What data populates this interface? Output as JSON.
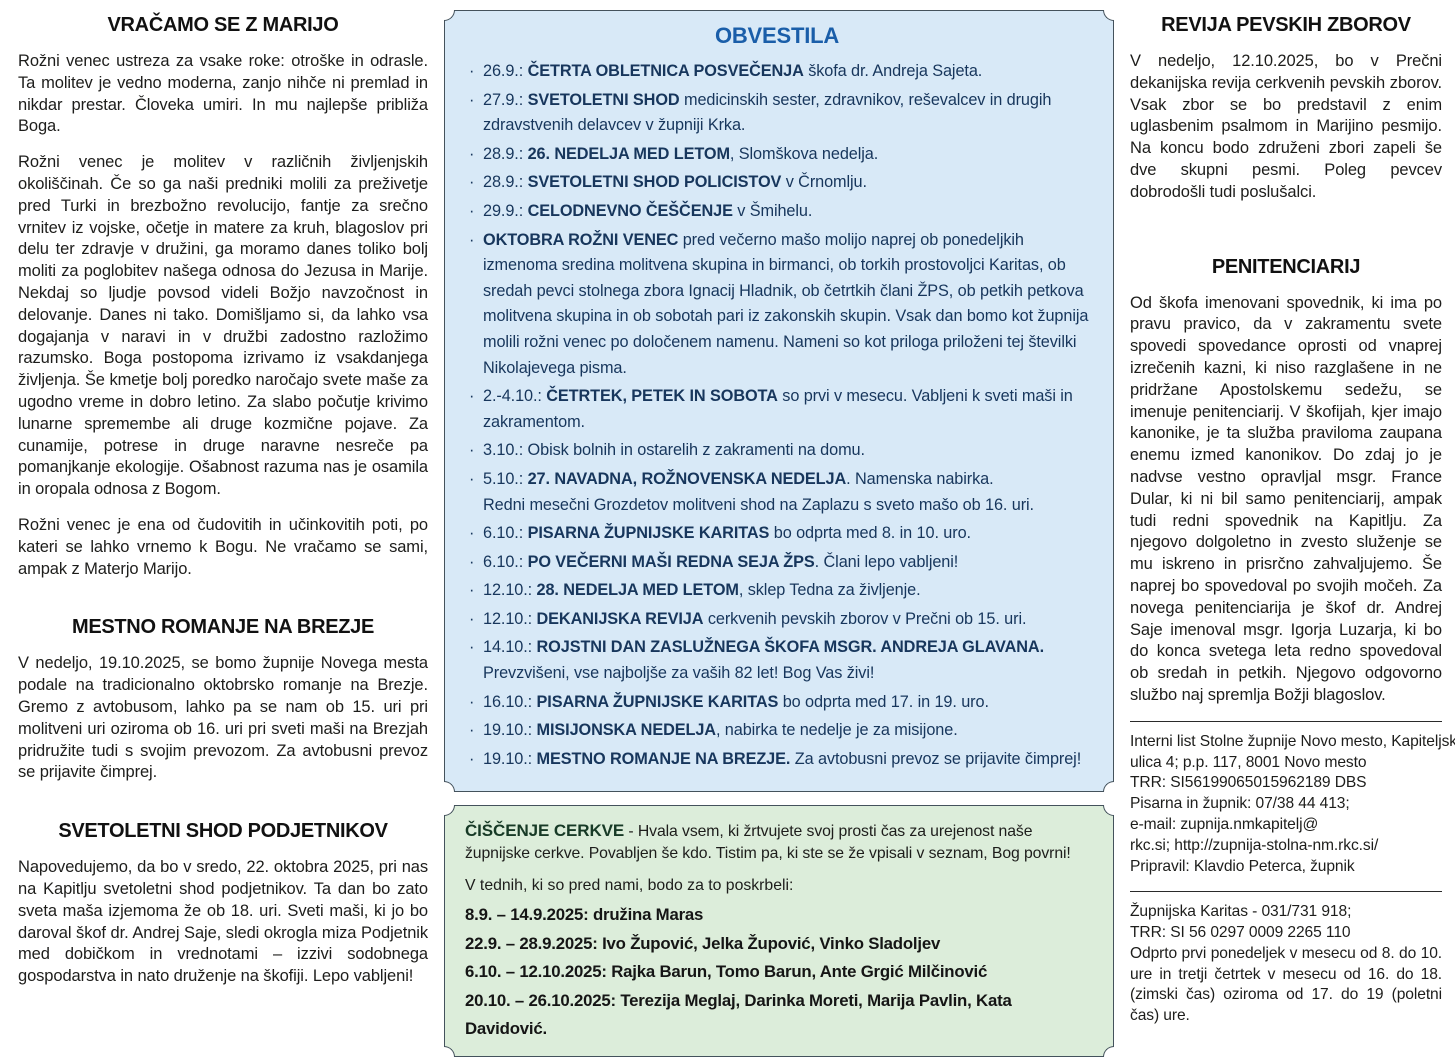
{
  "colors": {
    "accent_blue": "#1a5ea9",
    "box_blue_bg": "#d8e9f7",
    "box_blue_text": "#17365c",
    "box_green_bg": "#dcedda",
    "box_border": "#44525c",
    "text": "#1d1d1b"
  },
  "left_column": {
    "sections": [
      {
        "title": "VRAČAMO SE Z MARIJO",
        "paragraphs": [
          "Rožni venec ustreza za vsake roke: otroške in odrasle. Ta molitev je vedno moderna, zanjo nihče ni premlad in nikdar prestar. Človeka umiri. In mu najlepše približa Boga.",
          "Rožni venec je molitev v različnih življenjskih okoliščinah. Če so ga naši predniki molili za preživetje pred Turki in brezbožno revolucijo, fantje za srečno vrnitev iz vojske, očetje in matere za kruh, blagoslov pri delu ter zdravje v družini, ga moramo danes toliko bolj moliti za poglobitev našega odnosa do Jezusa in Marije. Nekdaj so ljudje povsod videli Božjo navzočnost in delovanje. Danes ni tako. Domišljamo si, da lahko vsa dogajanja v naravi in v družbi zadostno razložimo razumsko. Boga postopoma izrivamo iz vsakdanjega življenja. Še kmetje bolj poredko naročajo svete maše za ugodno vreme in dobro letino. Za slabo počutje krivimo lunarne spremembe ali druge kozmične pojave. Za cunamije, potrese in druge naravne nesreče pa pomanjkanje ekologije. Ošabnost razuma nas je osamila in oropala odnosa z Bogom.",
          "Rožni venec je ena od čudovitih in učinkovitih poti, po kateri se lahko vrnemo k Bogu. Ne vračamo se sami, ampak z Materjo Marijo."
        ]
      },
      {
        "title": "MESTNO ROMANJE NA BREZJE",
        "paragraphs": [
          "V nedeljo, 19.10.2025, se bomo župnije Novega mesta podale na tradicionalno oktobrsko romanje na Brezje. Gremo z avtobusom, lahko pa se nam ob 15. uri pri molitveni uri oziroma ob 16. uri pri sveti maši na Brezjah pridružite tudi s svojim prevozom. Za avtobusni prevoz se prijavite čimprej."
        ]
      },
      {
        "title": "SVETOLETNI SHOD PODJETNIKOV",
        "paragraphs": [
          "Napovedujemo, da bo v sredo, 22. oktobra 2025, pri nas na Kapitlju svetoletni shod podjetnikov. Ta dan bo zato sveta maša izjemoma že ob 18. uri. Sveti maši, ki jo bo daroval škof dr. Andrej Saje, sledi okrogla miza Podjetnik med dobičkom in vrednotami – izzivi sodobnega gospodarstva in nato druženje na škofiji. Lepo vabljeni!"
        ]
      }
    ]
  },
  "obvestila": {
    "title": "OBVESTILA",
    "bullet": "·",
    "items": [
      {
        "segments": [
          {
            "text": "26.9.: ",
            "bold": false
          },
          {
            "text": "ČETRTA OBLETNICA POSVEČENJA",
            "bold": true
          },
          {
            "text": " škofa dr. Andreja Sajeta.",
            "bold": false
          }
        ]
      },
      {
        "segments": [
          {
            "text": "27.9.: ",
            "bold": false
          },
          {
            "text": "SVETOLETNI SHOD",
            "bold": true
          },
          {
            "text": " medicinskih sester, zdravnikov, reševalcev in drugih zdravstvenih delavcev v župniji Krka.",
            "bold": false
          }
        ]
      },
      {
        "segments": [
          {
            "text": "28.9.: ",
            "bold": false
          },
          {
            "text": "26. NEDELJA MED LETOM",
            "bold": true
          },
          {
            "text": ", Slomškova nedelja.",
            "bold": false
          }
        ]
      },
      {
        "segments": [
          {
            "text": "28.9.: ",
            "bold": false
          },
          {
            "text": "SVETOLETNI SHOD POLICISTOV",
            "bold": true
          },
          {
            "text": " v Črnomlju.",
            "bold": false
          }
        ]
      },
      {
        "segments": [
          {
            "text": "29.9.: ",
            "bold": false
          },
          {
            "text": "CELODNEVNO ČEŠČENJE",
            "bold": true
          },
          {
            "text": " v Šmihelu.",
            "bold": false
          }
        ]
      },
      {
        "segments": [
          {
            "text": "OKTOBRA ROŽNI VENEC",
            "bold": true
          },
          {
            "text": " pred večerno mašo molijo naprej ob ponedeljkih izmenoma sredina molitvena skupina in birmanci, ob torkih prostovoljci Karitas, ob sredah pevci stolnega zbora Ignacij Hladnik, ob četrtkih člani ŽPS, ob petkih petkova molitvena skupina in ob sobotah pari iz zakonskih skupin. Vsak dan bomo kot župnija molili rožni venec po določenem namenu. Nameni so kot priloga priloženi tej številki Nikolajevega pisma.",
            "bold": false
          }
        ]
      },
      {
        "segments": [
          {
            "text": "2.-4.10.: ",
            "bold": false
          },
          {
            "text": "ČETRTEK, PETEK IN SOBOTA",
            "bold": true
          },
          {
            "text": " so prvi v mesecu. Vabljeni k sveti maši in zakramentom.",
            "bold": false
          }
        ]
      },
      {
        "segments": [
          {
            "text": "3.10.: Obisk bolnih in ostarelih z zakramenti na domu.",
            "bold": false
          }
        ]
      },
      {
        "segments": [
          {
            "text": "5.10.: ",
            "bold": false
          },
          {
            "text": "27. NAVADNA, ROŽNOVENSKA NEDELJA",
            "bold": true
          },
          {
            "text": ". Namenska nabirka.",
            "bold": false
          },
          {
            "text": "Redni mesečni Grozdetov molitveni shod na Zaplazu s sveto mašo ob 16. uri.",
            "bold": false,
            "br": true
          }
        ]
      },
      {
        "segments": [
          {
            "text": "6.10.: ",
            "bold": false
          },
          {
            "text": "PISARNA ŽUPNIJSKE KARITAS",
            "bold": true
          },
          {
            "text": " bo odprta med 8. in 10. uro.",
            "bold": false
          }
        ]
      },
      {
        "segments": [
          {
            "text": "6.10.: ",
            "bold": false
          },
          {
            "text": "PO VEČERNI MAŠI REDNA SEJA ŽPS",
            "bold": true
          },
          {
            "text": ". Člani lepo vabljeni!",
            "bold": false
          }
        ]
      },
      {
        "segments": [
          {
            "text": "12.10.: ",
            "bold": false
          },
          {
            "text": "28. NEDELJA MED LETOM",
            "bold": true
          },
          {
            "text": ", sklep Tedna za življenje.",
            "bold": false
          }
        ]
      },
      {
        "segments": [
          {
            "text": "12.10.: ",
            "bold": false
          },
          {
            "text": "DEKANIJSKA REVIJA",
            "bold": true
          },
          {
            "text": " cerkvenih pevskih zborov v Prečni ob 15. uri.",
            "bold": false
          }
        ]
      },
      {
        "segments": [
          {
            "text": "14.10.: ",
            "bold": false
          },
          {
            "text": "ROJSTNI DAN ZASLUŽNEGA ŠKOFA MSGR. ANDREJA GLAVANA.",
            "bold": true
          },
          {
            "text": "Prevzvišeni, vse najboljše za vaših 82 let! Bog Vas živi!",
            "bold": false,
            "br": true
          }
        ]
      },
      {
        "segments": [
          {
            "text": "16.10.: ",
            "bold": false
          },
          {
            "text": "PISARNA ŽUPNIJSKE KARITAS",
            "bold": true
          },
          {
            "text": " bo odprta med 17. in 19. uro.",
            "bold": false
          }
        ]
      },
      {
        "segments": [
          {
            "text": "19.10.: ",
            "bold": false
          },
          {
            "text": "MISIJONSKA NEDELJA",
            "bold": true
          },
          {
            "text": ", nabirka te nedelje je za misijone.",
            "bold": false
          }
        ]
      },
      {
        "segments": [
          {
            "text": "19.10.: ",
            "bold": false
          },
          {
            "text": "MESTNO ROMANJE NA BREZJE.",
            "bold": true
          },
          {
            "text": " Za avtobusni prevoz se prijavite čimprej!",
            "bold": false
          }
        ]
      }
    ]
  },
  "ciscenje": {
    "title": "ČIŠČENJE CERKVE",
    "intro_rest": " - Hvala vsem, ki žrtvujete svoj prosti čas za urejenost naše župnijske cerkve. Povabljen še kdo. Tistim pa, ki ste se že vpisali v seznam, Bog povrni!",
    "subtitle": "V tednih, ki so pred nami, bodo za to poskrbeli:",
    "schedule": [
      "8.9. – 14.9.2025: družina Maras",
      "22.9. – 28.9.2025: Ivo Župović, Jelka Župović, Vinko Sladoljev",
      "6.10. – 12.10.2025: Rajka Barun, Tomo Barun, Ante Grgić Milčinović",
      "20.10. – 26.10.2025:  Terezija Meglaj, Darinka Moreti, Marija Pavlin, Kata Davidović."
    ]
  },
  "right_column": {
    "revija": {
      "title": "REVIJA PEVSKIH ZBOROV",
      "paragraph": "V nedeljo, 12.10.2025, bo v Prečni dekanijska revija cerkvenih pevskih zborov. Vsak zbor se bo predstavil z enim uglasbenim psalmom in Marijino pesmijo. Na koncu bodo združeni zbori zapeli še dve skupni pesmi. Poleg pevcev dobrodošli tudi poslušalci."
    },
    "penitenciarij": {
      "title": "PENITENCIARIJ",
      "paragraph": "Od škofa imenovani spovednik, ki ima po pravu pravico, da v zakramentu svete spovedi spovedance oprosti od vnaprej izrečenih kazni, ki niso razglašene in ne pridržane Apostolskemu sedežu, se imenuje penitenciarij. V škofijah, kjer imajo kanonike, je ta služba praviloma zaupana enemu izmed kanonikov. Do zdaj jo je nadvse vestno opravljal msgr. France Dular, ki ni bil samo penitenciarij, ampak tudi redni spovednik na Kapitlju. Za njegovo dolgoletno in zvesto služenje se mu iskreno in prisrčno zahvaljujemo. Še naprej bo spovedoval po svojih močeh. Za novega penitenciarija je škof dr. Andrej Saje imenoval msgr. Igorja Luzarja, ki bo do konca svetega leta redno spovedoval ob sredah in petkih. Njegovo odgovorno službo naj spremlja Božji blagoslov."
    },
    "imprint_lines": [
      "Interni list Stolne župnije Novo mesto, Kapiteljska",
      "ulica 4; p.p. 117, 8001 Novo mesto",
      "TRR: SI56199065015962189 DBS",
      "Pisarna in župnik: 07/38 44 413;",
      "e-mail: zupnija.nmkapitelj@",
      "rkc.si; http://zupnija-stolna-nm.rkc.si/",
      "Pripravil: Klavdio Peterca, župnik"
    ],
    "karitas_lines": [
      "Župnijska Karitas - 031/731 918;",
      "TRR: SI 56 0297 0009 2265 110"
    ],
    "karitas_paragraph": "Odprto prvi ponedeljek v mesecu od 8. do 10. ure in tretji četrtek v mesecu od 16. do 18. (zimski čas) oziroma od 17. do 19 (poletni čas) ure."
  }
}
